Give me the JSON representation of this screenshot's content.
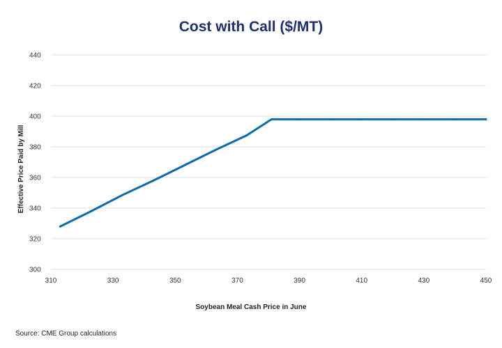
{
  "chart_data": {
    "type": "line",
    "title": "Cost with Call ($/MT)",
    "xlabel": "Soybean Meal Cash Price in June",
    "ylabel": "Effective Price Paid by Mill",
    "xlim": [
      310,
      450
    ],
    "ylim": [
      300,
      440
    ],
    "xticks": [
      310,
      330,
      350,
      370,
      390,
      410,
      430,
      450
    ],
    "yticks": [
      300,
      320,
      340,
      360,
      380,
      400,
      420,
      440
    ],
    "grid": true,
    "series": [
      {
        "name": "Cost with Call",
        "color": "#0b6aa8",
        "x": [
          313,
          323,
          333,
          343,
          353,
          363,
          373,
          381,
          390,
          400,
          410,
          420,
          430,
          440,
          450
        ],
        "y": [
          328,
          338,
          348.5,
          358,
          368,
          378,
          387.5,
          398,
          398,
          398,
          398,
          398,
          398,
          398,
          398
        ]
      }
    ]
  },
  "source": "Source: CME Group calculations",
  "colors": {
    "title": "#1f2f6b",
    "line": "#0b6aa8",
    "grid": "#dcdcdc"
  }
}
